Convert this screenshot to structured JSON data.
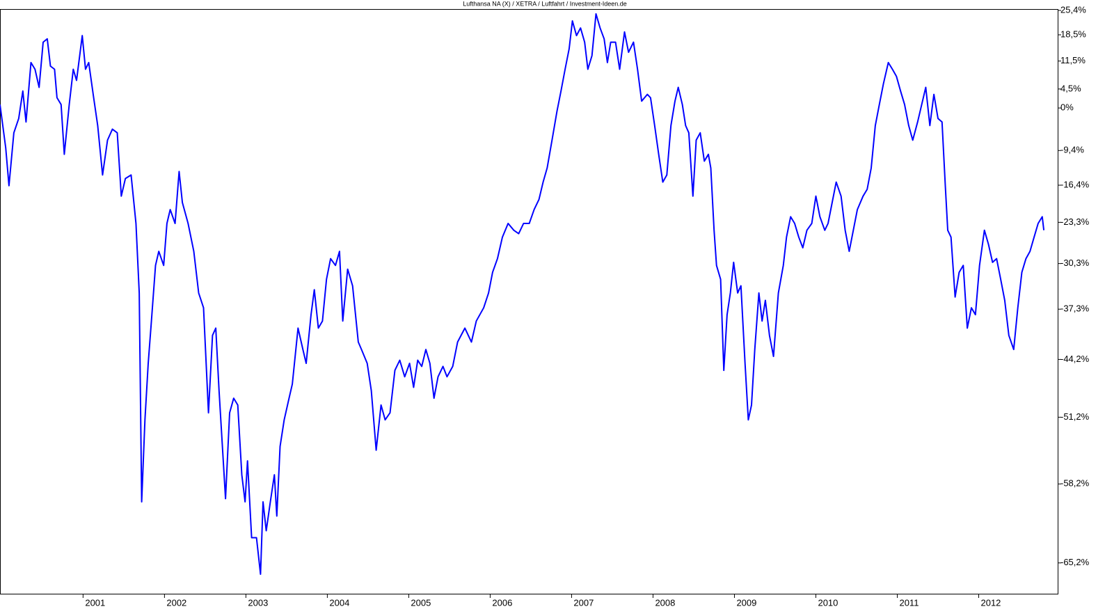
{
  "chart_data": {
    "type": "line",
    "title": "Lufthansa NA (X) / XETRA / Luftfahrt / Investment-Ideen.de",
    "color": "#0000ff",
    "yscale": "log",
    "x": [
      1999.98,
      2000.05,
      2000.09,
      2000.15,
      2000.21,
      2000.26,
      2000.3,
      2000.36,
      2000.41,
      2000.46,
      2000.51,
      2000.56,
      2000.6,
      2000.65,
      2000.68,
      2000.73,
      2000.77,
      2000.83,
      2000.88,
      2000.92,
      2000.99,
      2001.03,
      2001.07,
      2001.13,
      2001.18,
      2001.24,
      2001.3,
      2001.36,
      2001.42,
      2001.47,
      2001.52,
      2001.59,
      2001.65,
      2001.69,
      2001.72,
      2001.76,
      2001.8,
      2001.84,
      2001.89,
      2001.93,
      2001.99,
      2002.03,
      2002.07,
      2002.13,
      2002.18,
      2002.22,
      2002.29,
      2002.36,
      2002.42,
      2002.48,
      2002.54,
      2002.59,
      2002.63,
      2002.67,
      2002.75,
      2002.8,
      2002.85,
      2002.9,
      2002.95,
      2002.99,
      2003.02,
      2003.07,
      2003.13,
      2003.18,
      2003.21,
      2003.25,
      2003.3,
      2003.35,
      2003.38,
      2003.42,
      2003.47,
      2003.53,
      2003.57,
      2003.64,
      2003.7,
      2003.74,
      2003.8,
      2003.84,
      2003.89,
      2003.94,
      2003.99,
      2004.04,
      2004.1,
      2004.15,
      2004.19,
      2004.25,
      2004.31,
      2004.38,
      2004.42,
      2004.49,
      2004.54,
      2004.6,
      2004.66,
      2004.71,
      2004.77,
      2004.83,
      2004.89,
      2004.95,
      2005.01,
      2005.06,
      2005.11,
      2005.16,
      2005.21,
      2005.26,
      2005.31,
      2005.36,
      2005.42,
      2005.47,
      2005.54,
      2005.6,
      2005.69,
      2005.77,
      2005.83,
      2005.92,
      2005.98,
      2006.03,
      2006.09,
      2006.15,
      2006.22,
      2006.29,
      2006.35,
      2006.41,
      2006.48,
      2006.54,
      2006.6,
      2006.65,
      2006.7,
      2006.76,
      2006.82,
      2006.87,
      2006.92,
      2006.97,
      2007.01,
      2007.06,
      2007.11,
      2007.16,
      2007.2,
      2007.25,
      2007.3,
      2007.35,
      2007.4,
      2007.44,
      2007.48,
      2007.54,
      2007.59,
      2007.65,
      2007.7,
      2007.76,
      2007.81,
      2007.86,
      2007.93,
      2007.97,
      2008.02,
      2008.07,
      2008.12,
      2008.17,
      2008.22,
      2008.27,
      2008.31,
      2008.36,
      2008.4,
      2008.44,
      2008.49,
      2008.53,
      2008.58,
      2008.63,
      2008.68,
      2008.71,
      2008.75,
      2008.78,
      2008.83,
      2008.87,
      2008.91,
      2008.95,
      2008.99,
      2009.04,
      2009.08,
      2009.13,
      2009.17,
      2009.21,
      2009.25,
      2009.3,
      2009.34,
      2009.38,
      2009.43,
      2009.48,
      2009.54,
      2009.6,
      2009.64,
      2009.69,
      2009.74,
      2009.79,
      2009.84,
      2009.89,
      2009.95,
      2010.0,
      2010.05,
      2010.11,
      2010.15,
      2010.2,
      2010.25,
      2010.31,
      2010.36,
      2010.41,
      2010.46,
      2010.51,
      2010.58,
      2010.63,
      2010.68,
      2010.73,
      2010.78,
      2010.83,
      2010.89,
      2010.94,
      2010.99,
      2011.04,
      2011.09,
      2011.14,
      2011.19,
      2011.25,
      2011.3,
      2011.35,
      2011.4,
      2011.45,
      2011.5,
      2011.55,
      2011.59,
      2011.62,
      2011.66,
      2011.71,
      2011.76,
      2011.81,
      2011.86,
      2011.91,
      2011.96,
      2012.01,
      2012.07,
      2012.12,
      2012.17,
      2012.22,
      2012.27,
      2012.32,
      2012.37,
      2012.43,
      2012.48,
      2012.53,
      2012.58,
      2012.63,
      2012.68,
      2012.73,
      2012.78,
      2012.8
    ],
    "values": [
      0.8,
      -8.8,
      -16.5,
      -5.6,
      -2.4,
      4.0,
      -3.2,
      11.1,
      9.4,
      4.9,
      16.5,
      17.4,
      10.2,
      9.4,
      2.4,
      0.8,
      -10.2,
      0.8,
      9.4,
      6.6,
      18.3,
      9.4,
      11.1,
      2.4,
      -4.0,
      -14.4,
      -7.2,
      -4.8,
      -5.6,
      -18.5,
      -15.1,
      -14.4,
      -23.5,
      -34.9,
      -59.9,
      -51.5,
      -44.7,
      -39.0,
      -30.6,
      -28.3,
      -30.6,
      -23.5,
      -21.0,
      -23.5,
      -13.7,
      -19.7,
      -23.5,
      -28.3,
      -34.9,
      -37.1,
      -50.7,
      -41.0,
      -40.0,
      -48.1,
      -59.6,
      -50.7,
      -49.0,
      -49.8,
      -57.3,
      -59.9,
      -55.9,
      -63.1,
      -63.1,
      -66.1,
      -59.9,
      -62.5,
      -59.9,
      -57.3,
      -61.2,
      -54.4,
      -51.5,
      -49.0,
      -47.3,
      -40.0,
      -42.9,
      -44.7,
      -38.1,
      -34.4,
      -40.0,
      -39.0,
      -32.8,
      -29.5,
      -30.6,
      -28.3,
      -39.0,
      -31.2,
      -33.8,
      -41.9,
      -42.9,
      -44.7,
      -48.1,
      -54.8,
      -49.8,
      -51.5,
      -50.7,
      -45.6,
      -44.3,
      -46.4,
      -44.7,
      -47.7,
      -44.3,
      -45.1,
      -42.9,
      -44.7,
      -49.0,
      -46.4,
      -45.1,
      -46.4,
      -45.1,
      -41.9,
      -40.0,
      -41.9,
      -39.0,
      -37.1,
      -34.9,
      -31.7,
      -29.5,
      -25.9,
      -23.5,
      -24.7,
      -25.3,
      -23.5,
      -23.5,
      -21.0,
      -19.1,
      -15.8,
      -13.0,
      -7.2,
      -0.8,
      4.0,
      9.4,
      14.7,
      22.4,
      18.3,
      20.4,
      16.5,
      9.4,
      12.9,
      24.4,
      20.4,
      17.4,
      11.1,
      16.5,
      16.5,
      9.4,
      19.3,
      13.8,
      16.5,
      9.4,
      1.6,
      3.2,
      2.4,
      -4.0,
      -10.2,
      -15.8,
      -14.4,
      -4.0,
      1.6,
      4.9,
      0.8,
      -4.0,
      -5.6,
      -18.5,
      -7.2,
      -5.6,
      -11.6,
      -10.2,
      -13.0,
      -24.7,
      -30.6,
      -32.8,
      -45.6,
      -38.1,
      -34.9,
      -30.1,
      -34.9,
      -33.8,
      -44.7,
      -51.5,
      -49.8,
      -42.9,
      -34.9,
      -39.0,
      -36.0,
      -41.0,
      -43.8,
      -34.9,
      -30.6,
      -25.9,
      -22.3,
      -23.5,
      -25.9,
      -27.7,
      -24.7,
      -23.5,
      -18.5,
      -22.3,
      -24.7,
      -23.5,
      -19.7,
      -15.8,
      -18.5,
      -24.7,
      -28.3,
      -24.7,
      -21.0,
      -18.5,
      -17.2,
      -13.0,
      -4.0,
      0.8,
      5.8,
      11.1,
      9.4,
      7.6,
      4.0,
      0.8,
      -4.0,
      -7.2,
      -3.2,
      0.8,
      4.9,
      -4.0,
      3.2,
      -2.4,
      -3.2,
      -16.5,
      -24.7,
      -25.9,
      -35.5,
      -31.7,
      -30.6,
      -40.0,
      -37.1,
      -38.1,
      -30.6,
      -24.7,
      -27.1,
      -30.1,
      -29.5,
      -32.8,
      -36.0,
      -41.0,
      -42.9,
      -37.1,
      -31.7,
      -29.5,
      -28.3,
      -25.9,
      -23.5,
      -22.3,
      -24.7
    ],
    "xlim": [
      1999.98,
      2012.97
    ],
    "xticks": [
      2001,
      2002,
      2003,
      2004,
      2005,
      2006,
      2007,
      2008,
      2009,
      2010,
      2011,
      2012
    ],
    "ylim": [
      -67.6,
      25.8
    ],
    "yticks": [
      {
        "value": 25.4,
        "label": "25,4%"
      },
      {
        "value": 18.5,
        "label": "18,5%"
      },
      {
        "value": 11.5,
        "label": "11,5%"
      },
      {
        "value": 4.5,
        "label": "4,5%"
      },
      {
        "value": 0,
        "label": "0%"
      },
      {
        "value": -9.4,
        "label": "-9,4%"
      },
      {
        "value": -16.4,
        "label": "-16,4%"
      },
      {
        "value": -23.3,
        "label": "-23,3%"
      },
      {
        "value": -30.3,
        "label": "-30,3%"
      },
      {
        "value": -37.3,
        "label": "-37,3%"
      },
      {
        "value": -44.2,
        "label": "-44,2%"
      },
      {
        "value": -51.2,
        "label": "-51,2%"
      },
      {
        "value": -58.2,
        "label": "-58,2%"
      },
      {
        "value": -65.2,
        "label": "-65,2%"
      }
    ]
  }
}
